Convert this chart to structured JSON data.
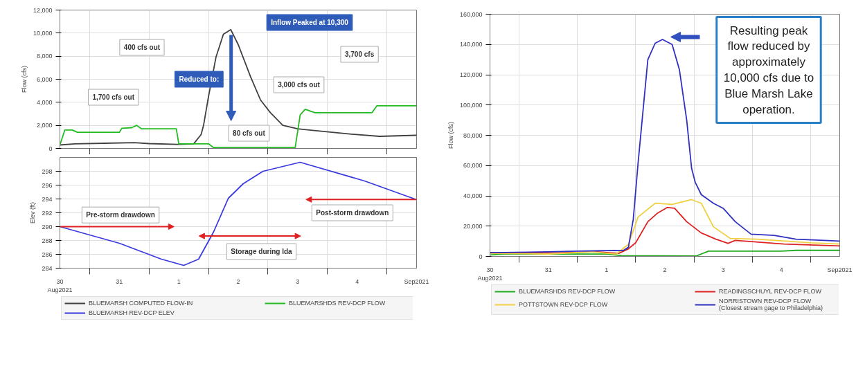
{
  "chart_data": [
    {
      "type": "line",
      "ylabel": "Flow (cfs)",
      "xlim": [
        "2021-08-30T12:00",
        "2021-09-05T12:00"
      ],
      "ylim": [
        0,
        12000
      ],
      "yticks": [
        {
          "value": 0,
          "label": "0"
        },
        {
          "value": 2000,
          "label": "2,000"
        },
        {
          "value": 4000,
          "label": "4,000"
        },
        {
          "value": 6000,
          "label": "6,000"
        },
        {
          "value": 8000,
          "label": "8,000"
        },
        {
          "value": 10000,
          "label": "10,000"
        },
        {
          "value": 12000,
          "label": "12,000"
        }
      ],
      "xticks": [
        {
          "value": "2021-08-30T12:00",
          "label": "30\nAug2021"
        },
        {
          "value": "2021-08-31T00:00",
          "label": null
        },
        {
          "value": "2021-08-31T12:00",
          "label": "31"
        },
        {
          "value": "2021-09-01T00:00",
          "label": null
        },
        {
          "value": "2021-09-01T12:00",
          "label": "1"
        },
        {
          "value": "2021-09-02T00:00",
          "label": null
        },
        {
          "value": "2021-09-02T12:00",
          "label": "2"
        },
        {
          "value": "2021-09-03T00:00",
          "label": null
        },
        {
          "value": "2021-09-03T12:00",
          "label": "3"
        },
        {
          "value": "2021-09-04T00:00",
          "label": null
        },
        {
          "value": "2021-09-04T12:00",
          "label": "4"
        },
        {
          "value": "2021-09-05T00:00",
          "label": null
        },
        {
          "value": "2021-09-05T12:00",
          "label": "Sep2021"
        }
      ],
      "tick_labels": "y",
      "grid": true,
      "legend": "bottom",
      "series": [
        {
          "name": "BLUEMARSH COMPUTED FLOW-IN",
          "color": "#404040",
          "x": [
            "2021-08-30T12:00",
            "2021-08-30T18:00",
            "2021-08-31T06:00",
            "2021-08-31T18:00",
            "2021-09-01T00:00",
            "2021-09-01T12:00",
            "2021-09-01T18:00",
            "2021-09-01T21:00",
            "2021-09-01T22:00",
            "2021-09-02T00:00",
            "2021-09-02T03:00",
            "2021-09-02T06:00",
            "2021-09-02T09:00",
            "2021-09-02T12:00",
            "2021-09-02T17:00",
            "2021-09-02T21:00",
            "2021-09-03T01:00",
            "2021-09-03T06:00",
            "2021-09-03T12:00",
            "2021-09-03T18:00",
            "2021-09-04T09:00",
            "2021-09-04T21:00",
            "2021-09-05T12:00"
          ],
          "values": [
            300,
            400,
            450,
            500,
            420,
            350,
            400,
            1200,
            2000,
            4500,
            7900,
            9900,
            10300,
            9000,
            6200,
            4200,
            3100,
            2000,
            1700,
            1570,
            1250,
            1050,
            1140
          ]
        },
        {
          "name": "BLUEMARSHDS REV-DCP FLOW",
          "color": "#22bb22",
          "x": [
            "2021-08-30T12:00",
            "2021-08-30T14:00",
            "2021-08-30T17:00",
            "2021-08-30T19:00",
            "2021-08-31T12:00",
            "2021-08-31T13:00",
            "2021-08-31T17:00",
            "2021-08-31T19:00",
            "2021-08-31T21:00",
            "2021-09-01T11:00",
            "2021-09-01T12:00",
            "2021-09-02T00:00",
            "2021-09-02T02:00",
            "2021-09-03T11:00",
            "2021-09-03T13:00",
            "2021-09-03T15:00",
            "2021-09-03T19:00",
            "2021-09-04T18:00",
            "2021-09-04T20:00",
            "2021-09-05T12:00"
          ],
          "values": [
            300,
            1600,
            1600,
            1400,
            1400,
            1750,
            1800,
            2000,
            1700,
            1700,
            400,
            400,
            80,
            80,
            2900,
            3400,
            3100,
            3100,
            3700,
            3700
          ]
        }
      ],
      "annotations": [
        "Inflow Peaked at 10,300",
        "400 cfs out",
        "Reduced to:",
        "1,700 cfs out",
        "80 cfs out",
        "3,000 cfs out",
        "3,700 cfs"
      ]
    },
    {
      "type": "line",
      "ylabel": "Elev (ft)",
      "xlim": [
        "2021-08-30T12:00",
        "2021-09-05T12:00"
      ],
      "ylim": [
        284,
        300
      ],
      "yticks": [
        284,
        286,
        288,
        290,
        292,
        294,
        296,
        298
      ],
      "xticks": [
        {
          "value": "2021-08-30T12:00",
          "label": "30\nAug2021"
        },
        {
          "value": "2021-08-31T00:00",
          "label": null
        },
        {
          "value": "2021-08-31T12:00",
          "label": "31"
        },
        {
          "value": "2021-09-01T00:00",
          "label": null
        },
        {
          "value": "2021-09-01T12:00",
          "label": "1"
        },
        {
          "value": "2021-09-02T00:00",
          "label": null
        },
        {
          "value": "2021-09-02T12:00",
          "label": "2"
        },
        {
          "value": "2021-09-03T00:00",
          "label": null
        },
        {
          "value": "2021-09-03T12:00",
          "label": "3"
        },
        {
          "value": "2021-09-04T00:00",
          "label": null
        },
        {
          "value": "2021-09-04T12:00",
          "label": "4"
        },
        {
          "value": "2021-09-05T00:00",
          "label": null
        },
        {
          "value": "2021-09-05T12:00",
          "label": "Sep2021"
        }
      ],
      "grid": true,
      "legend": "bottom",
      "series": [
        {
          "name": "BLUEMARSH REV-DCP ELEV",
          "color": "#3a3ae0",
          "x": [
            "2021-08-30T12:00",
            "2021-08-31T12:00",
            "2021-09-01T05:00",
            "2021-09-01T14:00",
            "2021-09-01T20:00",
            "2021-09-02T02:00",
            "2021-09-02T08:00",
            "2021-09-02T14:00",
            "2021-09-02T22:00",
            "2021-09-03T13:00",
            "2021-09-04T15:00",
            "2021-09-05T12:00"
          ],
          "values": [
            290.0,
            287.6,
            285.3,
            284.4,
            285.3,
            289.2,
            294.1,
            296.2,
            298.0,
            299.3,
            296.6,
            293.9
          ]
        }
      ],
      "annotations": [
        "Pre-storm drawdown",
        "Storage during Ida",
        "Post-storm drawdown"
      ]
    },
    {
      "type": "line",
      "ylabel": "Flow (cfs)",
      "xlim": [
        "2021-08-30T12:00",
        "2021-09-05T12:00"
      ],
      "ylim": [
        0,
        160000
      ],
      "yticks": [
        {
          "value": 0,
          "label": "0"
        },
        {
          "value": 20000,
          "label": "20,000"
        },
        {
          "value": 40000,
          "label": "40,000"
        },
        {
          "value": 60000,
          "label": "60,000"
        },
        {
          "value": 80000,
          "label": "80,000"
        },
        {
          "value": 100000,
          "label": "100,000"
        },
        {
          "value": 120000,
          "label": "120,000"
        },
        {
          "value": 140000,
          "label": "140,000"
        },
        {
          "value": 160000,
          "label": "160,000"
        }
      ],
      "xticks": [
        {
          "value": "2021-08-30T12:00",
          "label": "30\nAug2021"
        },
        {
          "value": "2021-08-31T00:00",
          "label": null
        },
        {
          "value": "2021-08-31T12:00",
          "label": "31"
        },
        {
          "value": "2021-09-01T00:00",
          "label": null
        },
        {
          "value": "2021-09-01T12:00",
          "label": "1"
        },
        {
          "value": "2021-09-02T00:00",
          "label": null
        },
        {
          "value": "2021-09-02T12:00",
          "label": "2"
        },
        {
          "value": "2021-09-03T00:00",
          "label": null
        },
        {
          "value": "2021-09-03T12:00",
          "label": "3"
        },
        {
          "value": "2021-09-04T00:00",
          "label": null
        },
        {
          "value": "2021-09-04T12:00",
          "label": "4"
        },
        {
          "value": "2021-09-05T00:00",
          "label": null
        },
        {
          "value": "2021-09-05T12:00",
          "label": "Sep2021"
        }
      ],
      "grid": true,
      "legend": "bottom",
      "series": [
        {
          "name": "BLUEMARSHDS REV-DCP FLOW",
          "color": "#22aa22",
          "x": [
            "2021-08-30T12:00",
            "2021-08-30T18:00",
            "2021-09-01T12:00",
            "2021-09-01T18:00",
            "2021-09-03T01:00",
            "2021-09-03T06:00",
            "2021-09-04T12:00",
            "2021-09-04T18:00",
            "2021-09-05T12:00"
          ],
          "values": [
            1000,
            1500,
            1500,
            500,
            300,
            3500,
            3500,
            4000,
            4000
          ]
        },
        {
          "name": "READINGSCHUYL REV-DCP FLOW",
          "color": "#dd2222",
          "x": [
            "2021-08-30T12:00",
            "2021-08-31T12:00",
            "2021-09-01T08:00",
            "2021-09-01T17:00",
            "2021-09-01T21:00",
            "2021-09-02T00:00",
            "2021-09-02T05:00",
            "2021-09-02T09:00",
            "2021-09-02T13:00",
            "2021-09-02T16:00",
            "2021-09-02T21:00",
            "2021-09-03T03:00",
            "2021-09-03T09:00",
            "2021-09-03T14:00",
            "2021-09-03T17:00",
            "2021-09-04T13:00",
            "2021-09-05T12:00"
          ],
          "values": [
            2500,
            2200,
            3000,
            2000,
            5000,
            9000,
            22900,
            28600,
            32300,
            31800,
            22900,
            15500,
            11400,
            8600,
            10600,
            8200,
            6900
          ]
        },
        {
          "name": "POTTSTOWN REV-DCP FLOW",
          "color": "#f0d040",
          "x": [
            "2021-08-30T12:00",
            "2021-08-31T12:00",
            "2021-09-01T06:00",
            "2021-09-01T16:00",
            "2021-09-01T21:00",
            "2021-09-02T01:00",
            "2021-09-02T08:00",
            "2021-09-02T15:00",
            "2021-09-02T23:00",
            "2021-09-03T03:00",
            "2021-09-03T08:00",
            "2021-09-03T15:00",
            "2021-09-04T02:00",
            "2021-09-05T00:00",
            "2021-09-05T12:00"
          ],
          "values": [
            2000,
            1600,
            3000,
            1500,
            8000,
            26000,
            35100,
            34300,
            37500,
            35100,
            19600,
            11800,
            11400,
            9000,
            8200
          ]
        },
        {
          "name": "NORRISTOWN REV-DCP FLOW",
          "color": "#3030c0",
          "x": [
            "2021-08-30T12:00",
            "2021-08-31T12:00",
            "2021-09-01T00:00",
            "2021-09-01T19:00",
            "2021-09-01T21:00",
            "2021-09-01T23:00",
            "2021-09-02T01:00",
            "2021-09-02T05:00",
            "2021-09-02T08:00",
            "2021-09-02T11:00",
            "2021-09-02T15:00",
            "2021-09-02T18:00",
            "2021-09-02T21:00",
            "2021-09-02T23:00",
            "2021-09-03T00:30",
            "2021-09-03T03:00",
            "2021-09-03T08:00",
            "2021-09-03T12:00",
            "2021-09-03T17:00",
            "2021-09-03T23:30",
            "2021-09-04T09:00",
            "2021-09-04T18:00",
            "2021-09-05T12:00"
          ],
          "values": [
            2500,
            3000,
            3500,
            4000,
            6000,
            24500,
            62000,
            130000,
            140800,
            143300,
            140000,
            123300,
            90000,
            58300,
            49000,
            40800,
            35100,
            31800,
            22900,
            14700,
            13900,
            11400,
            10100
          ]
        }
      ],
      "annotations": [
        "Resulting peak flow reduced by approximately 10,000 cfs due to Blue Marsh Lake operation.",
        "(Closest stream gage to Philadelphia)"
      ]
    }
  ]
}
